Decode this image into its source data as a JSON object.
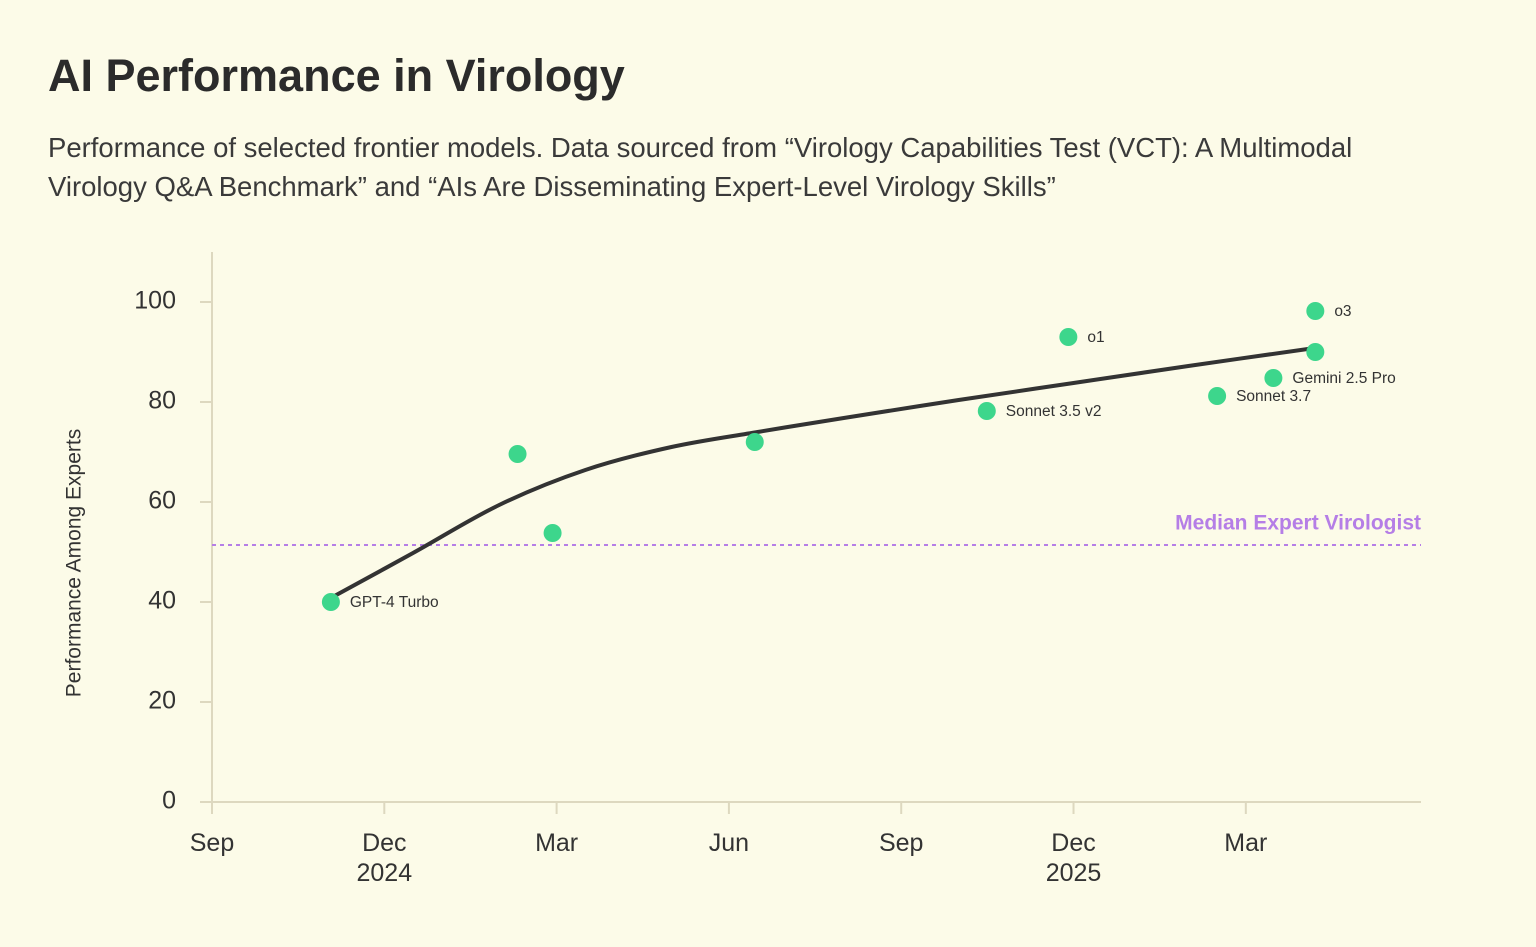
{
  "chart_data": {
    "type": "scatter",
    "title": "AI Performance in Virology",
    "subtitle": "Performance of selected frontier models. Data sourced from “Virology Capabilities Test (VCT): A Multimodal Virology Q&A Benchmark” and “AIs Are Disseminating Expert-Level Virology Skills”",
    "y_label": "Performance Among Experts",
    "xlim": [
      0,
      21.05
    ],
    "xticks": [
      {
        "value": 0,
        "label": "Sep"
      },
      {
        "value": 3,
        "label": "Dec\n2024"
      },
      {
        "value": 6,
        "label": "Mar"
      },
      {
        "value": 9,
        "label": "Jun"
      },
      {
        "value": 12,
        "label": "Sep"
      },
      {
        "value": 15,
        "label": "Dec\n2025"
      },
      {
        "value": 18,
        "label": "Mar"
      }
    ],
    "ylim": [
      0,
      110
    ],
    "yticks": [
      0,
      20,
      40,
      60,
      80,
      100
    ],
    "series": [
      {
        "color": "#3dd68c",
        "x": [
          2.07,
          5.32,
          5.93,
          9.45,
          13.49,
          14.91,
          17.5,
          18.48,
          19.21,
          19.21
        ],
        "values": [
          40,
          69.6,
          53.8,
          72,
          78.2,
          93,
          81.2,
          84.8,
          98.2,
          90
        ],
        "point_labels": [
          "GPT-4 Turbo",
          null,
          null,
          null,
          "Sonnet 3.5 v2",
          "o1",
          "Sonnet 3.7",
          "Gemini 2.5 Pro",
          "o3",
          null
        ]
      }
    ],
    "trend": {
      "color": "#333333",
      "x": [
        2.1,
        3.5,
        5,
        6.5,
        8,
        9.5,
        11,
        13,
        15,
        17,
        19.2
      ],
      "values": [
        41,
        49.8,
        59.4,
        66.4,
        71,
        74,
        76.8,
        80.4,
        83.8,
        87.2,
        90.8
      ]
    },
    "reference_line": {
      "label": "Median Expert Virologist",
      "value": 51.4,
      "color": "#b57ee6"
    }
  }
}
